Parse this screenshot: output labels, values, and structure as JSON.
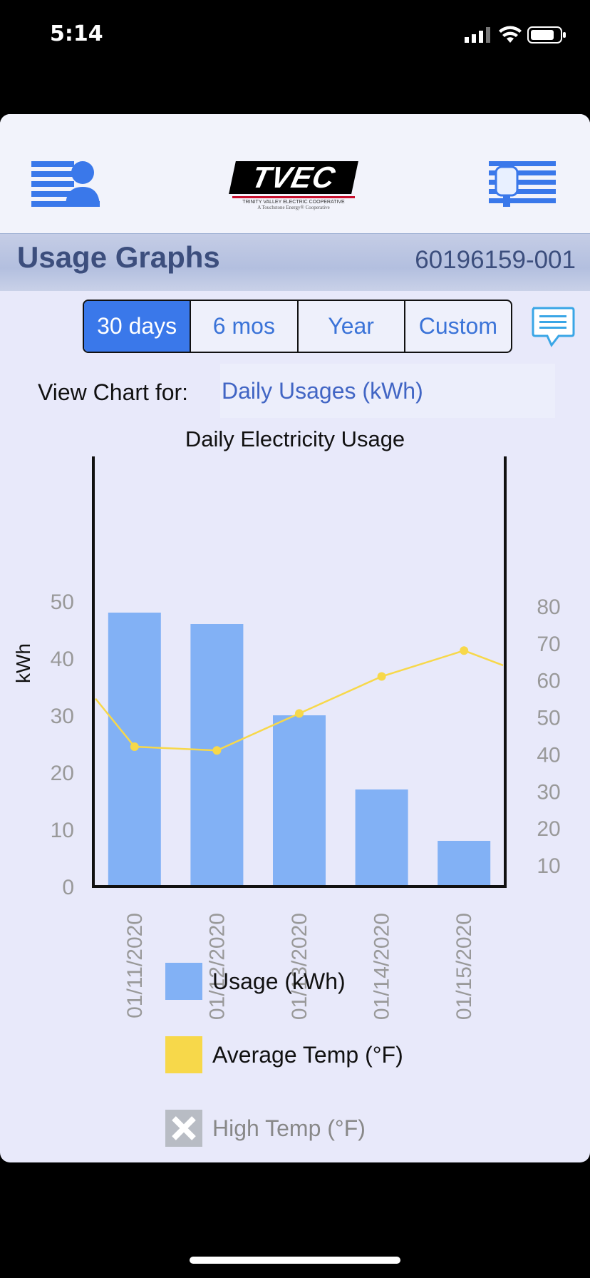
{
  "status_bar": {
    "time": "5:14"
  },
  "header": {
    "logo_text": "TVEC",
    "logo_subtitle": "TRINITY VALLEY ELECTRIC COOPERATIVE",
    "logo_tagline": "A Touchstone Energy® Cooperative"
  },
  "page": {
    "title": "Usage Graphs",
    "account_number": "60196159-001"
  },
  "range_tabs": [
    {
      "label": "30 days",
      "active": true
    },
    {
      "label": "6 mos",
      "active": false
    },
    {
      "label": "Year",
      "active": false
    },
    {
      "label": "Custom",
      "active": false
    }
  ],
  "view_chart": {
    "label": "View Chart for:",
    "value": "Daily Usages (kWh)"
  },
  "colors": {
    "accent": "#3a78ea",
    "usage_bar": "#82b1f5",
    "avg_temp": "#f7d84a",
    "header_text": "#3c4e7d"
  },
  "chart_data": {
    "type": "bar",
    "title": "Daily Electricity Usage",
    "ylabel": "kWh",
    "categories": [
      "01/11/2020",
      "01/12/2020",
      "01/13/2020",
      "01/14/2020",
      "01/15/2020"
    ],
    "ylim": [
      0,
      55
    ],
    "y_ticks": [
      0,
      10,
      20,
      30,
      40,
      50
    ],
    "y2lim": [
      0,
      85
    ],
    "y2_ticks": [
      10,
      20,
      30,
      40,
      50,
      60,
      70,
      80
    ],
    "series": [
      {
        "name": "Usage (kWh)",
        "type": "bar",
        "axis": "left",
        "values": [
          48,
          46,
          30,
          17,
          8
        ]
      },
      {
        "name": "Average Temp (°F)",
        "type": "line",
        "axis": "right",
        "values": [
          42,
          41,
          51,
          61,
          68
        ],
        "left_edge": 55,
        "right_edge": 64
      }
    ],
    "legend": [
      {
        "label": "Usage (kWh)",
        "color": "#82b1f5",
        "enabled": true
      },
      {
        "label": "Average Temp (°F)",
        "color": "#f7d84a",
        "enabled": true
      },
      {
        "label": "High Temp (°F)",
        "color": "#b8bcc4",
        "enabled": false
      }
    ]
  }
}
